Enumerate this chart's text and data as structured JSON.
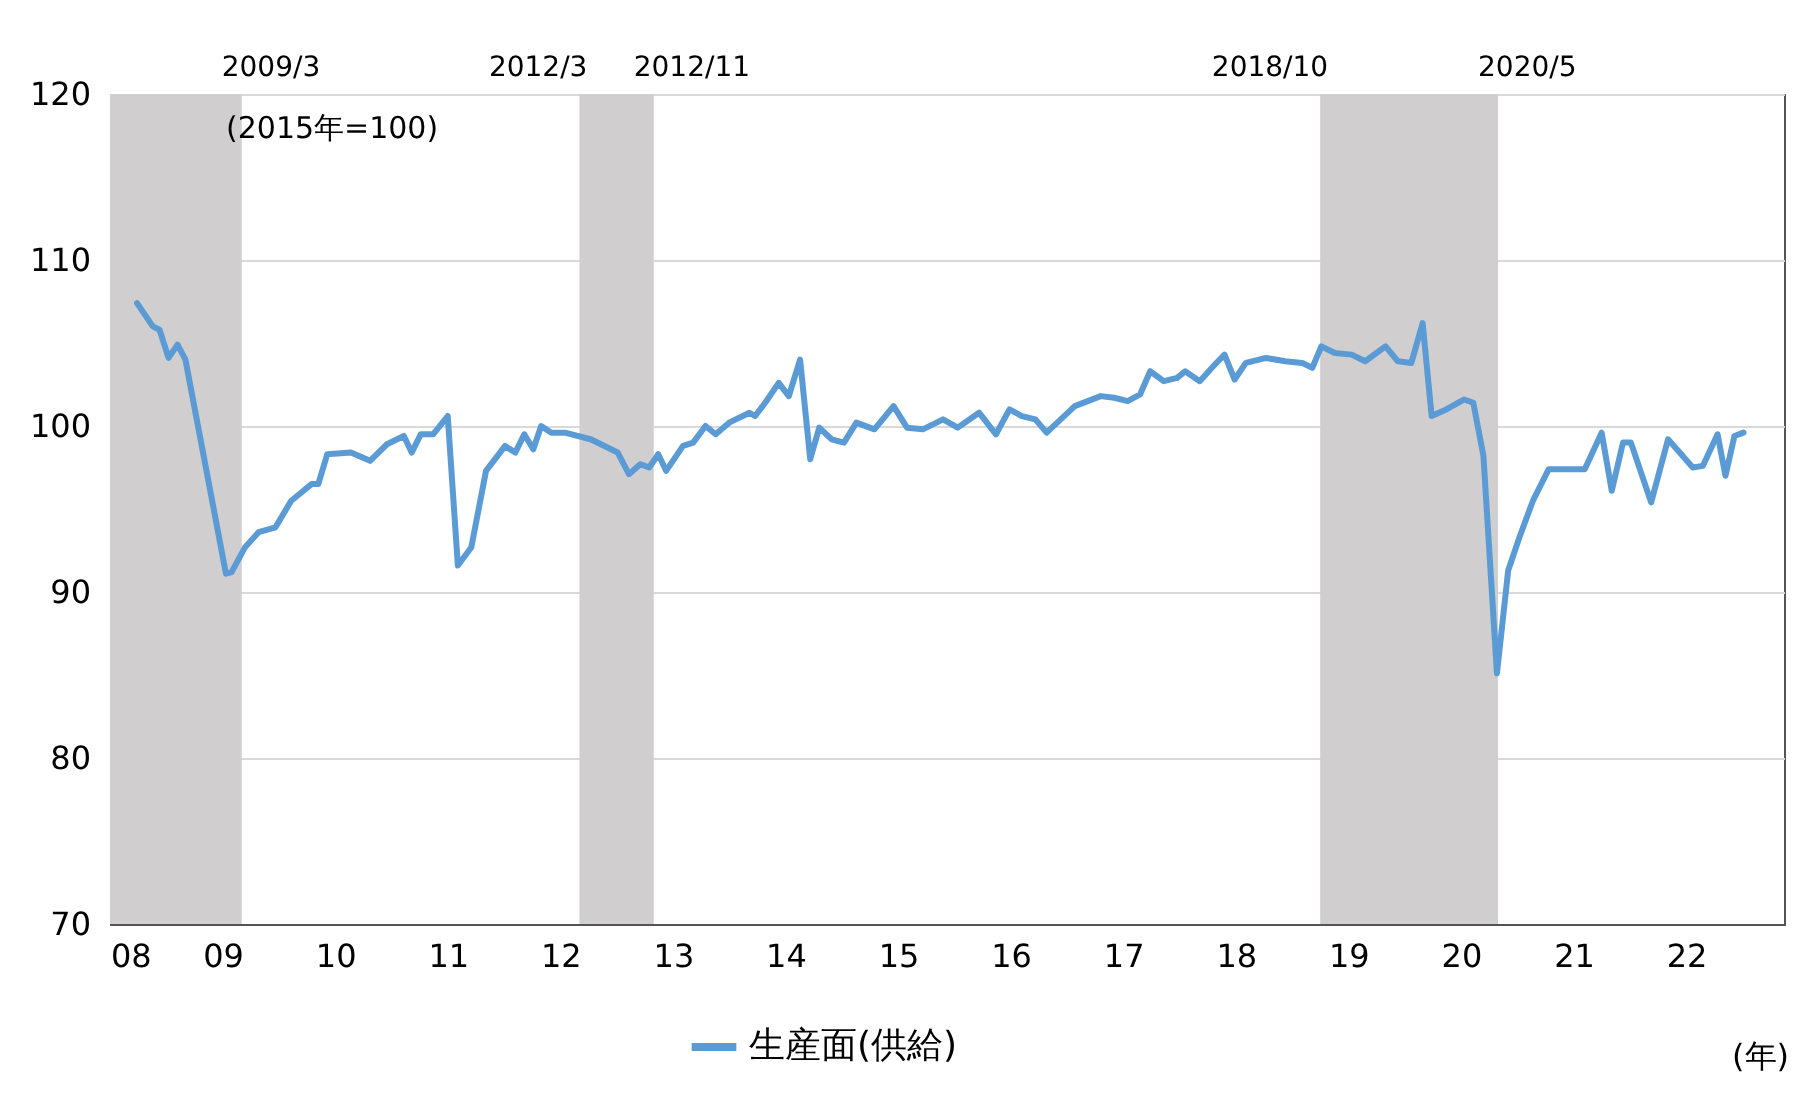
{
  "chart_data": {
    "type": "line",
    "xlabel": "(年)",
    "x": [
      2008.24,
      2008.38,
      2008.44,
      2008.52,
      2008.6,
      2008.67,
      2009.03,
      2009.08,
      2009.2,
      2009.32,
      2009.47,
      2009.61,
      2009.79,
      2009.85,
      2009.93,
      2010.14,
      2010.31,
      2010.46,
      2010.61,
      2010.68,
      2010.76,
      2010.87,
      2011.0,
      2011.09,
      2011.21,
      2011.34,
      2011.51,
      2011.6,
      2011.68,
      2011.76,
      2011.83,
      2011.92,
      2012.04,
      2012.27,
      2012.51,
      2012.61,
      2012.71,
      2012.79,
      2012.87,
      2012.94,
      2013.09,
      2013.18,
      2013.29,
      2013.38,
      2013.5,
      2013.68,
      2013.73,
      2013.82,
      2013.94,
      2014.03,
      2014.13,
      2014.22,
      2014.3,
      2014.41,
      2014.52,
      2014.63,
      2014.79,
      2014.96,
      2015.08,
      2015.22,
      2015.4,
      2015.53,
      2015.72,
      2015.87,
      2015.99,
      2016.1,
      2016.22,
      2016.32,
      2016.57,
      2016.8,
      2016.92,
      2017.04,
      2017.15,
      2017.24,
      2017.36,
      2017.48,
      2017.55,
      2017.68,
      2017.8,
      2017.9,
      2017.99,
      2018.09,
      2018.27,
      2018.44,
      2018.59,
      2018.68,
      2018.76,
      2018.88,
      2019.03,
      2019.15,
      2019.33,
      2019.44,
      2019.56,
      2019.66,
      2019.74,
      2019.87,
      2020.03,
      2020.11,
      2020.2,
      2020.32,
      2020.42,
      2020.52,
      2020.64,
      2020.78,
      2020.96,
      2021.1,
      2021.25,
      2021.34,
      2021.44,
      2021.51,
      2021.69,
      2021.84,
      2022.06,
      2022.15,
      2022.28,
      2022.35,
      2022.43,
      2022.51
    ],
    "series": [
      {
        "name": "生産面(供給)",
        "color": "#5b9bd5",
        "values": [
          107.4,
          106.0,
          105.8,
          104.1,
          104.9,
          104.0,
          91.1,
          91.2,
          92.7,
          93.6,
          93.9,
          95.5,
          96.5,
          96.5,
          98.3,
          98.4,
          97.9,
          98.9,
          99.4,
          98.4,
          99.5,
          99.5,
          100.6,
          91.6,
          92.7,
          97.3,
          98.8,
          98.4,
          99.5,
          98.6,
          100.0,
          99.6,
          99.6,
          99.2,
          98.4,
          97.1,
          97.7,
          97.5,
          98.3,
          97.3,
          98.8,
          99.0,
          100.0,
          99.5,
          100.2,
          100.8,
          100.6,
          101.4,
          102.6,
          101.8,
          104.0,
          98.0,
          99.9,
          99.2,
          99.0,
          100.2,
          99.8,
          101.2,
          99.9,
          99.8,
          100.4,
          99.9,
          100.8,
          99.5,
          101.0,
          100.6,
          100.4,
          99.6,
          101.2,
          101.8,
          101.7,
          101.5,
          101.9,
          103.3,
          102.7,
          102.9,
          103.3,
          102.7,
          103.6,
          104.3,
          102.8,
          103.8,
          104.1,
          103.9,
          103.8,
          103.5,
          104.8,
          104.4,
          104.3,
          103.9,
          104.8,
          103.9,
          103.8,
          106.2,
          100.6,
          101.0,
          101.6,
          101.4,
          98.2,
          85.1,
          91.3,
          93.3,
          95.5,
          97.4,
          97.4,
          97.4,
          99.6,
          96.1,
          99.0,
          99.0,
          95.4,
          99.2,
          97.5,
          97.6,
          99.5,
          97.0,
          99.4,
          99.6
        ]
      }
    ],
    "xlim": [
      2008,
      2022.87
    ],
    "xticks": [
      {
        "value": 2008,
        "label": "08"
      },
      {
        "value": 2009,
        "label": "09"
      },
      {
        "value": 2010,
        "label": "10"
      },
      {
        "value": 2011,
        "label": "11"
      },
      {
        "value": 2012,
        "label": "12"
      },
      {
        "value": 2013,
        "label": "13"
      },
      {
        "value": 2014,
        "label": "14"
      },
      {
        "value": 2015,
        "label": "15"
      },
      {
        "value": 2016,
        "label": "16"
      },
      {
        "value": 2017,
        "label": "17"
      },
      {
        "value": 2018,
        "label": "18"
      },
      {
        "value": 2019,
        "label": "19"
      },
      {
        "value": 2020,
        "label": "20"
      },
      {
        "value": 2021,
        "label": "21"
      },
      {
        "value": 2022,
        "label": "22"
      }
    ],
    "ylim": [
      70,
      120
    ],
    "yticks": [
      70,
      80,
      90,
      100,
      110,
      120
    ],
    "grid": "y",
    "legend": "bottom",
    "bands": [
      {
        "axis": "x",
        "from": 2008,
        "to": 2009.17,
        "color": "#d0cece"
      },
      {
        "axis": "x",
        "from": 2012.17,
        "to": 2012.83,
        "color": "#d0cece"
      },
      {
        "axis": "x",
        "from": 2018.75,
        "to": 2020.33,
        "color": "#d0cece"
      }
    ],
    "annotations": [
      {
        "text": "2009/3",
        "x": 2009.17,
        "y": 120
      },
      {
        "text": "2012/3",
        "x": 2012.17,
        "y": 120
      },
      {
        "text": "2012/11",
        "x": 2012.83,
        "y": 120
      },
      {
        "text": "2018/10",
        "x": 2018.75,
        "y": 120
      },
      {
        "text": "2020/5",
        "x": 2020.33,
        "y": 120
      },
      "(2015年=100)"
    ]
  }
}
